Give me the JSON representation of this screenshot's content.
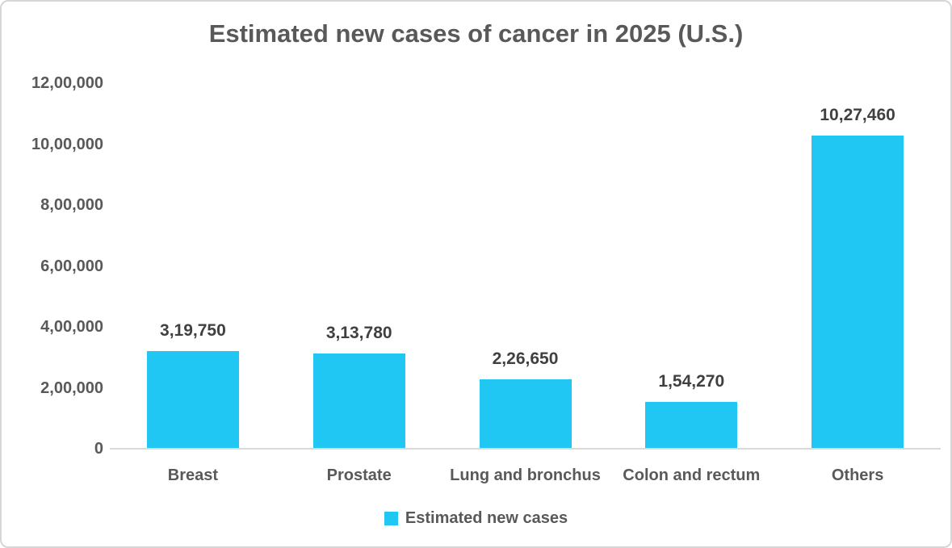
{
  "chart_data": {
    "type": "bar",
    "title": "Estimated new cases of cancer in 2025 (U.S.)",
    "categories": [
      "Breast",
      "Prostate",
      "Lung and bronchus",
      "Colon and rectum",
      "Others"
    ],
    "series": [
      {
        "name": "Estimated new cases",
        "values": [
          319750,
          313780,
          226650,
          154270,
          1027460
        ],
        "value_labels": [
          "3,19,750",
          "3,13,780",
          "2,26,650",
          "1,54,270",
          "10,27,460"
        ]
      }
    ],
    "ylim": [
      0,
      1200000
    ],
    "ytick_step": 200000,
    "ytick_labels": [
      "0",
      "2,00,000",
      "4,00,000",
      "6,00,000",
      "8,00,000",
      "10,00,000",
      "12,00,000"
    ],
    "grid": false,
    "legend_position": "bottom",
    "legend_entries": [
      "Estimated new cases"
    ]
  },
  "colors": {
    "bar": "#1fc7f2",
    "axis_line": "#d9d9d9",
    "axis_text": "#595959",
    "value_text": "#404040",
    "title_text": "#595959",
    "frame_border": "#d6d6d6"
  }
}
